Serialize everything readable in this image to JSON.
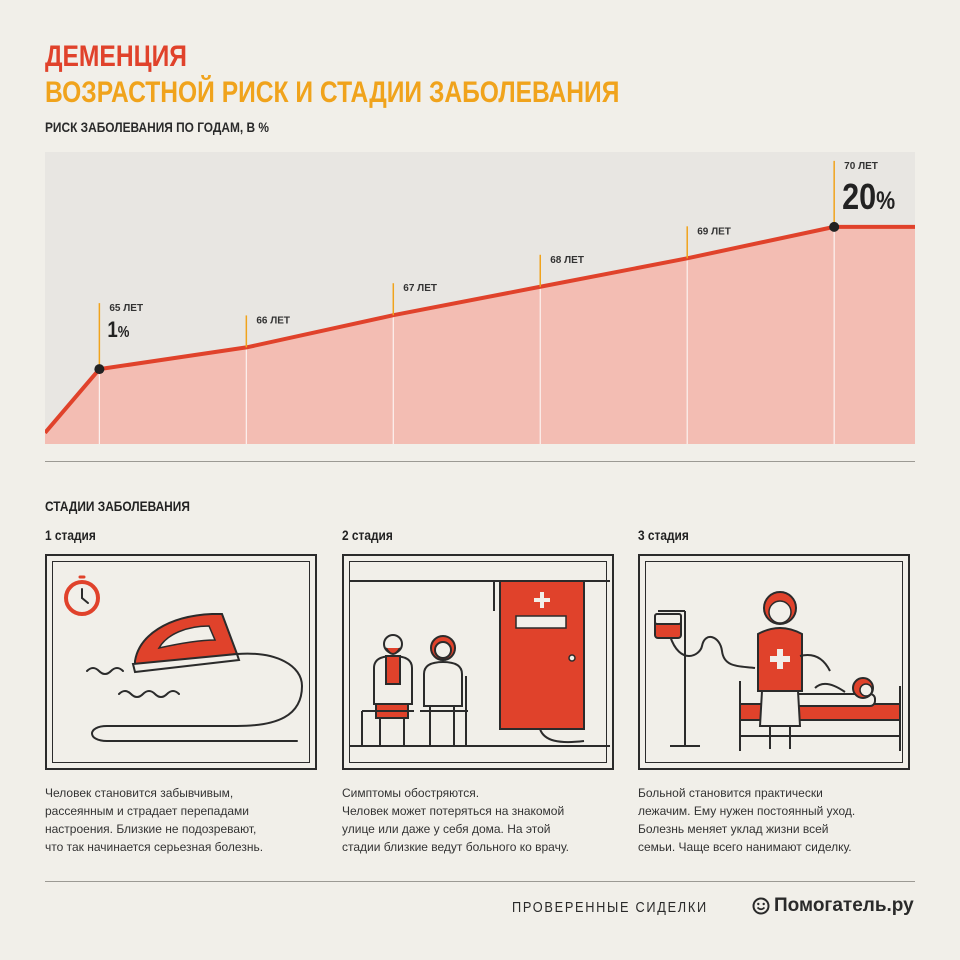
{
  "header": {
    "title": "ДЕМЕНЦИЯ",
    "subtitle": "ВОЗРАСТНОЙ РИСК И СТАДИИ ЗАБОЛЕВАНИЯ",
    "chart_caption": "РИСК ЗАБОЛЕВАНИЯ ПО ГОДАМ, В %"
  },
  "colors": {
    "red": "#e0422b",
    "orange": "#f0a31c",
    "area_fill": "#f3bdb3",
    "chart_bg": "#e8e6e2",
    "dark": "#2b2b2b"
  },
  "chart_data": {
    "type": "area",
    "title": "РИСК ЗАБОЛЕВАНИЯ ПО ГОДАМ, В %",
    "categories": [
      "65 ЛЕТ",
      "66 ЛЕТ",
      "67 ЛЕТ",
      "68 ЛЕТ",
      "69 ЛЕТ",
      "70 ЛЕТ"
    ],
    "x": [
      65,
      66,
      67,
      68,
      69,
      70
    ],
    "values": [
      1,
      3.9,
      8.2,
      12.0,
      15.8,
      20
    ],
    "start_value": -7.5,
    "end_x": 70.55,
    "annotations": [
      {
        "x": 65,
        "value_label": "1",
        "unit": "%"
      },
      {
        "x": 70,
        "value_label": "20",
        "unit": "%"
      }
    ],
    "ylim": [
      -9,
      30
    ],
    "xlim": [
      64.63,
      70.55
    ],
    "grid": true
  },
  "stages": {
    "section_title": "СТАДИИ ЗАБОЛЕВАНИЯ",
    "items": [
      {
        "label": "1 стадия",
        "icon": "iron-clock-icon",
        "text": [
          "Человек становится забывчивым,",
          "рассеянным и страдает перепадами",
          "настроения. Близкие не подозревают,",
          "что так начинается серьезная болезнь."
        ]
      },
      {
        "label": "2 стадия",
        "icon": "doctor-door-icon",
        "text": [
          "Симптомы обостряются.",
          "Человек может потеряться на знакомой",
          "улице или даже у себя дома. На этой",
          "стадии близкие ведут больного ко врачу."
        ]
      },
      {
        "label": "3 стадия",
        "icon": "nurse-bed-icon",
        "text": [
          "Больной становится практически",
          "лежачим. Ему нужен постоянный уход.",
          "Болезнь меняет уклад жизни всей",
          "семьи. Чаще всего нанимают сиделку."
        ]
      }
    ]
  },
  "footer": {
    "tagline": "ПРОВЕРЕННЫЕ СИДЕЛКИ",
    "brand": "Помогатель.ру",
    "brand_icon": "smiley-icon"
  }
}
